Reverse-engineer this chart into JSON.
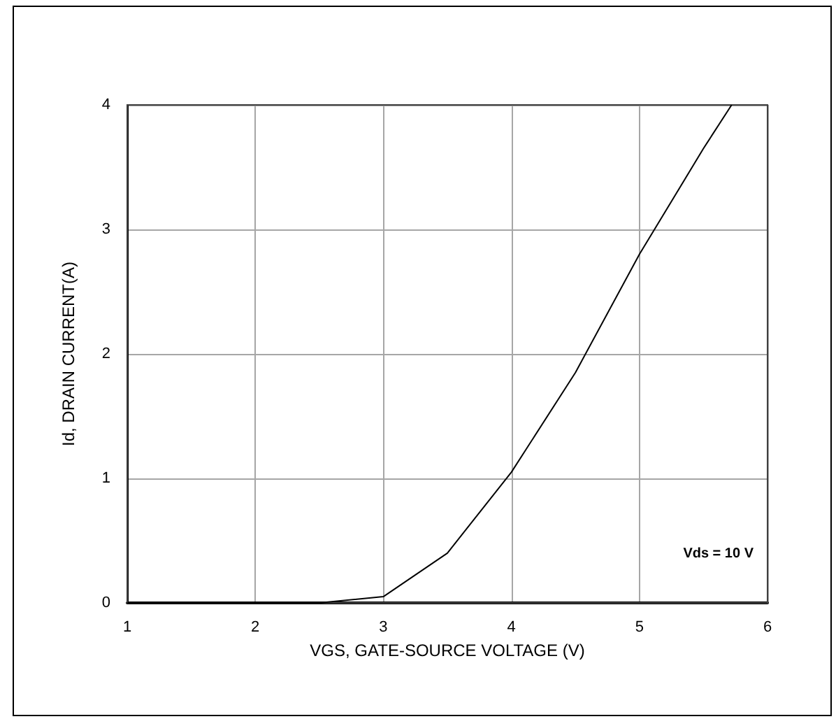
{
  "chart_data": {
    "type": "line",
    "xlabel": "VGS, GATE-SOURCE VOLTAGE (V)",
    "ylabel": "Id, DRAIN CURRENT(A)",
    "x": [
      1,
      2.5,
      3,
      3.5,
      4,
      4.5,
      5,
      5.5,
      5.72
    ],
    "series": [
      {
        "color": "#000000",
        "values": [
          0,
          0,
          0.05,
          0.4,
          1.05,
          1.85,
          2.8,
          3.65,
          4
        ]
      }
    ],
    "xlim": [
      1,
      6
    ],
    "xticks": [
      1,
      2,
      3,
      4,
      5,
      6
    ],
    "ylim": [
      0,
      4
    ],
    "yticks": [
      0,
      1,
      2,
      3,
      4
    ],
    "grid": true,
    "marker": "none",
    "line_style": "solid",
    "annotations": [
      "Vds = 10 V"
    ]
  }
}
